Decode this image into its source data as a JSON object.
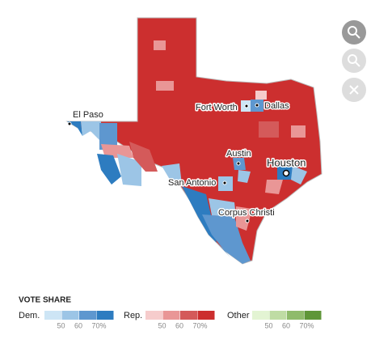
{
  "cities": [
    {
      "label": "El Paso"
    },
    {
      "label": "Fort Worth"
    },
    {
      "label": "Dallas"
    },
    {
      "label": "Austin"
    },
    {
      "label": "Houston"
    },
    {
      "label": "San Antonio"
    },
    {
      "label": "Corpus Christi"
    }
  ],
  "legend": {
    "title": "VOTE SHARE",
    "groups": [
      {
        "label": "Dem.",
        "colors": [
          "#cde5f5",
          "#9cc5e6",
          "#5e97cf",
          "#2d7cc0"
        ],
        "ticks": [
          "50",
          "60",
          "70%"
        ]
      },
      {
        "label": "Rep.",
        "colors": [
          "#f6cccc",
          "#e99696",
          "#d45a5a",
          "#cc2f2f"
        ],
        "ticks": [
          "50",
          "60",
          "70%"
        ]
      },
      {
        "label": "Other",
        "colors": [
          "#e3f4d3",
          "#bfdca4",
          "#8fbb6b",
          "#5f9638"
        ],
        "ticks": [
          "50",
          "60",
          "70%"
        ]
      }
    ]
  }
}
